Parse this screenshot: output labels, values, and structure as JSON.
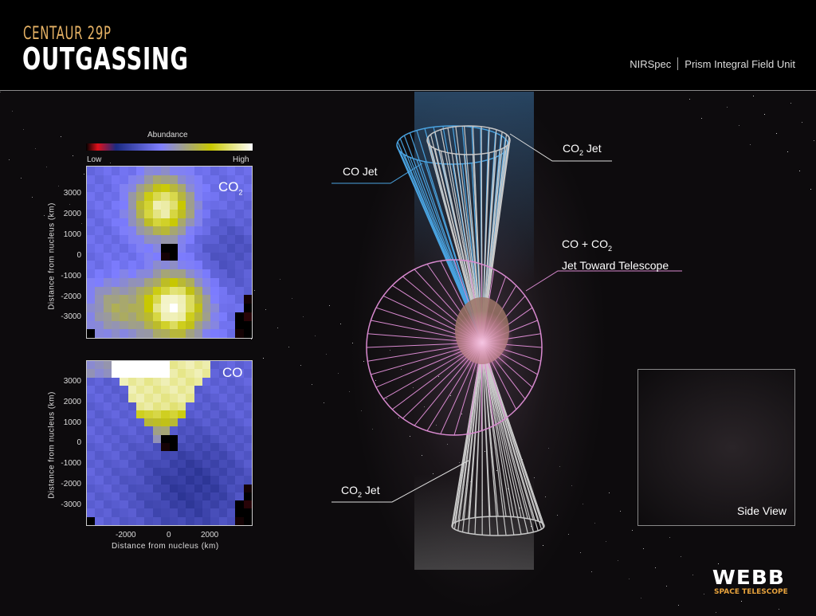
{
  "header": {
    "subtitle": "CENTAUR 29P",
    "title": "OUTGASSING",
    "instrument": "NIRSpec",
    "mode": "Prism Integral Field Unit"
  },
  "colorbar": {
    "title": "Abundance",
    "low": "Low",
    "high": "High",
    "colors": [
      "#000000",
      "#e0101a",
      "#1a2a80",
      "#7f7fff",
      "#c8c800",
      "#ffffff"
    ]
  },
  "maps": [
    {
      "label": "CO",
      "sub": "2",
      "ylabel": "Distance from nucleus (km)",
      "yticks": [
        "3000",
        "2000",
        "1000",
        "0",
        "-1000",
        "-2000",
        "-3000"
      ]
    },
    {
      "label": "CO",
      "sub": "",
      "ylabel": "Distance from nucleus (km)",
      "yticks": [
        "3000",
        "2000",
        "1000",
        "0",
        "-1000",
        "-2000",
        "-3000"
      ],
      "xticks": [
        "-2000",
        "0",
        "2000"
      ],
      "xlabel": "Distance from nucleus (km)"
    }
  ],
  "jets": {
    "co2_top": {
      "a": "CO",
      "sub": "2",
      "b": " Jet"
    },
    "co": {
      "text": "CO Jet"
    },
    "toward": {
      "a": "CO + CO",
      "sub": "2",
      "line2": "Jet Toward Telescope"
    },
    "co2_bottom": {
      "a": "CO",
      "sub": "2",
      "b": " Jet"
    }
  },
  "colors": {
    "co_jet": "#4aa3e0",
    "co2_jet": "#c8c8c8",
    "toward_jet": "#d98ad0"
  },
  "side_view": {
    "label": "Side View"
  },
  "logo": {
    "name": "WEBB",
    "sub": "SPACE TELESCOPE"
  }
}
